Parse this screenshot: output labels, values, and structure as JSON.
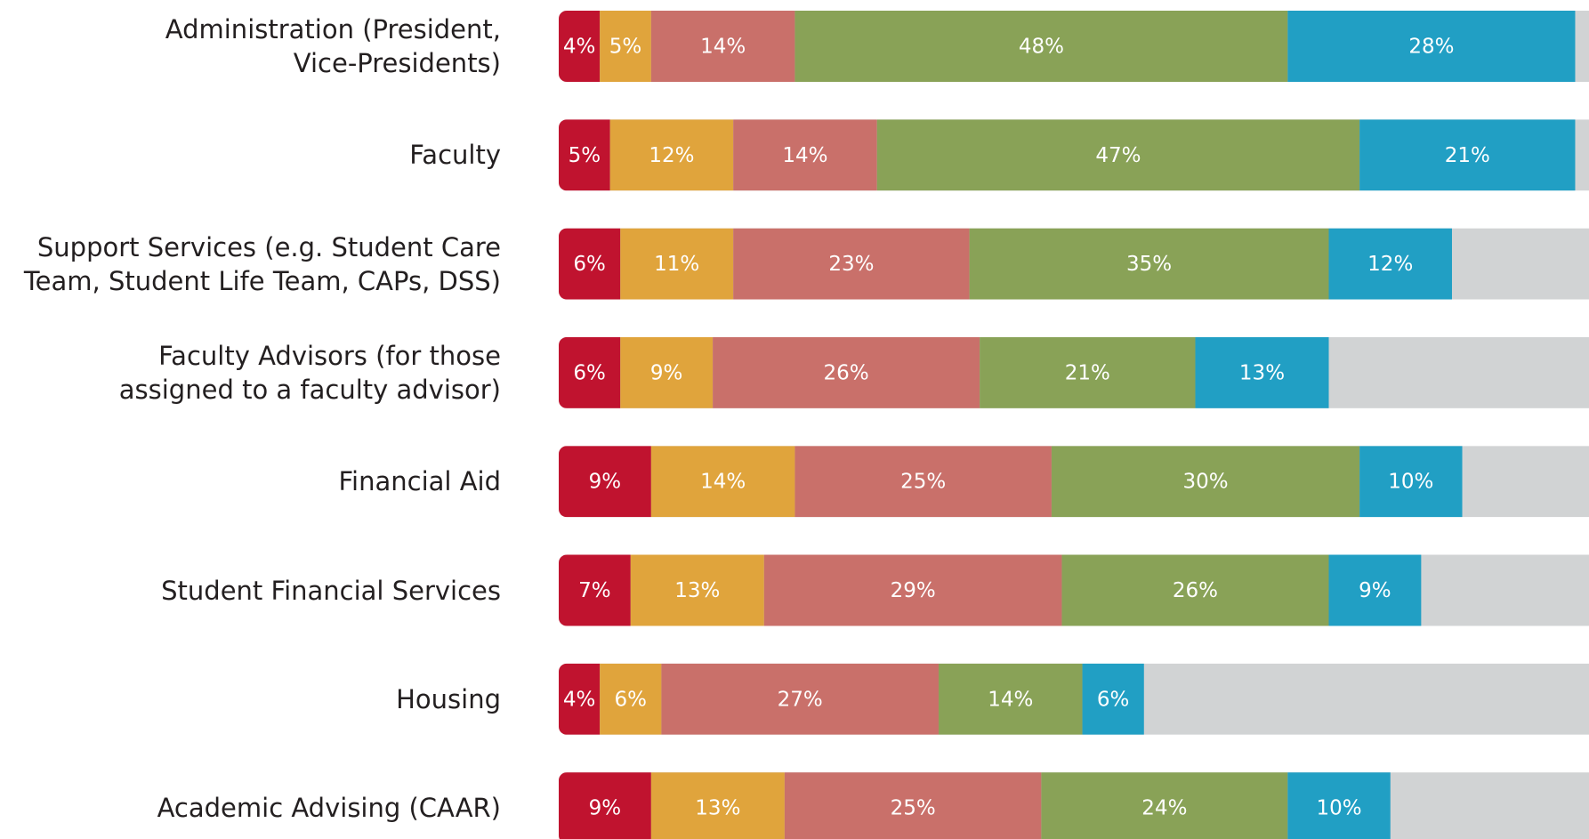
{
  "chart_data": {
    "type": "stacked_bar_horizontal",
    "categories": [
      "Administration (President,\nVice-Presidents)",
      "Faculty",
      "Support Services (e.g. Student Care\nTeam, Student Life Team, CAPs, DSS)",
      "Faculty Advisors (for those\nassigned to a faculty advisor)",
      "Financial Aid",
      "Student Financial Services",
      "Housing",
      "Academic Advising (CAAR)"
    ],
    "xlim": [
      0,
      100
    ],
    "series": [
      {
        "color": "#c0132f",
        "values": [
          4,
          5,
          6,
          6,
          9,
          7,
          4,
          9
        ],
        "value_labels": [
          "4%",
          "5%",
          "6%",
          "6%",
          "9%",
          "7%",
          "4%",
          "9%"
        ]
      },
      {
        "color": "#e0a43c",
        "values": [
          5,
          12,
          11,
          9,
          14,
          13,
          6,
          13
        ],
        "value_labels": [
          "5%",
          "12%",
          "11%",
          "9%",
          "14%",
          "13%",
          "6%",
          "13%"
        ]
      },
      {
        "color": "#c9706a",
        "values": [
          14,
          14,
          23,
          26,
          25,
          29,
          27,
          25
        ],
        "value_labels": [
          "14%",
          "14%",
          "23%",
          "26%",
          "25%",
          "29%",
          "27%",
          "25%"
        ]
      },
      {
        "color": "#89a257",
        "values": [
          48,
          47,
          35,
          21,
          30,
          26,
          14,
          24
        ],
        "value_labels": [
          "48%",
          "47%",
          "35%",
          "21%",
          "30%",
          "26%",
          "14%",
          "24%"
        ]
      },
      {
        "color": "#219fc4",
        "values": [
          28,
          21,
          12,
          13,
          10,
          9,
          6,
          10
        ],
        "value_labels": [
          "28%",
          "21%",
          "12%",
          "13%",
          "10%",
          "9%",
          "6%",
          "10%"
        ]
      }
    ]
  }
}
